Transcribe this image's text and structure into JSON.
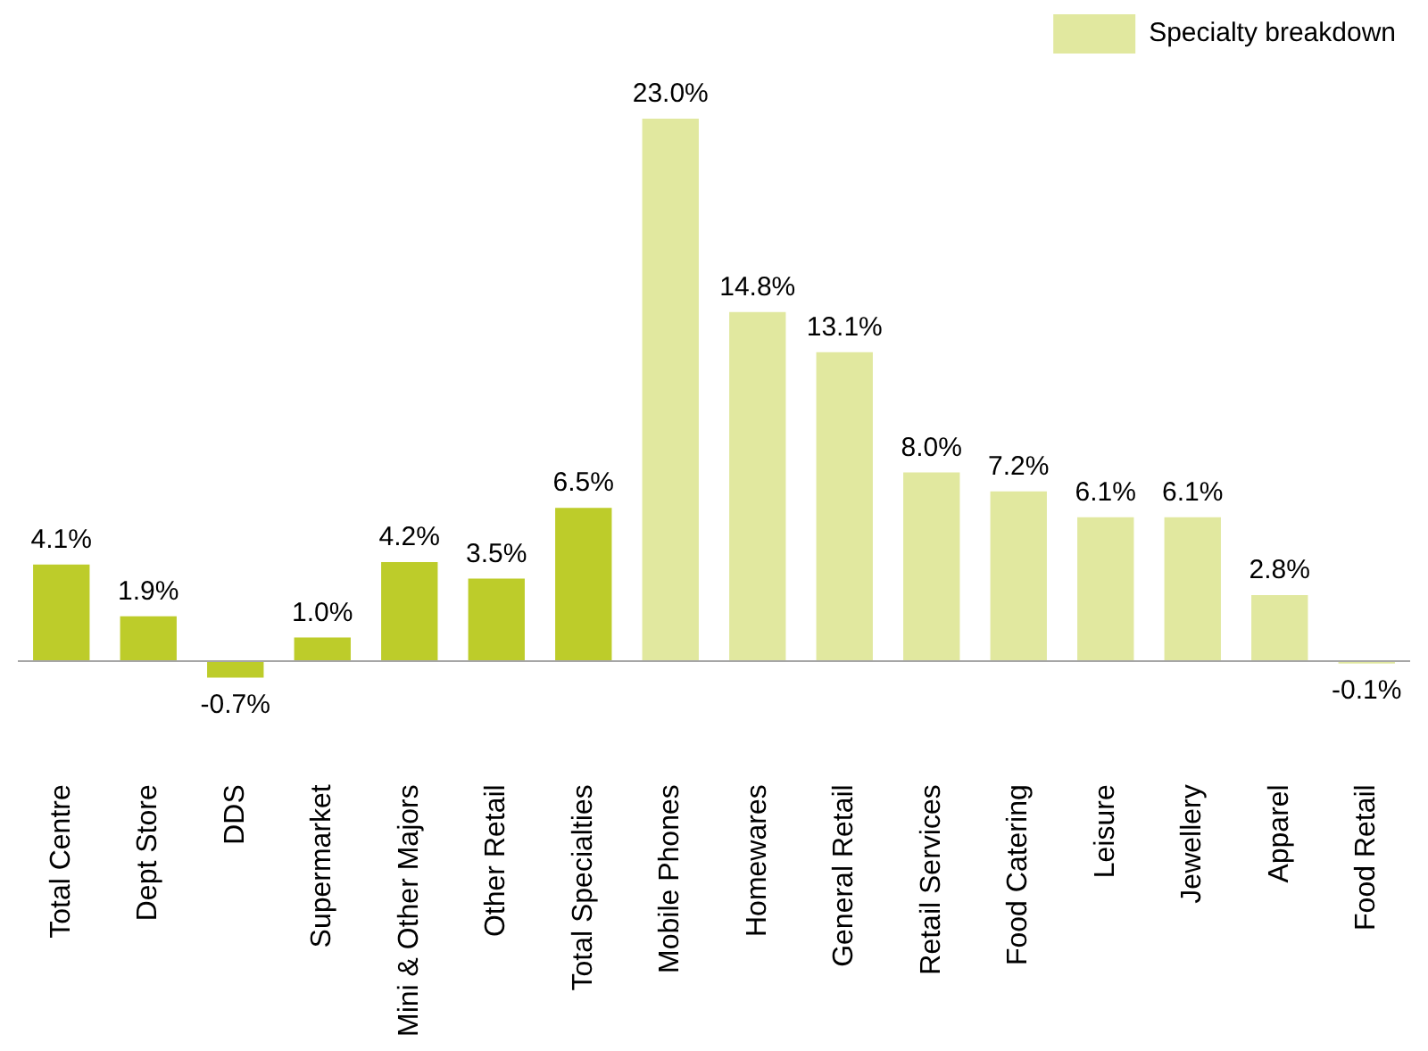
{
  "chart_data": {
    "type": "bar",
    "categories": [
      "Total Centre",
      "Dept Store",
      "DDS",
      "Supermarket",
      "Mini & Other Majors",
      "Other Retail",
      "Total Specialties",
      "Mobile Phones",
      "Homewares",
      "General Retail",
      "Retail Services",
      "Food Catering",
      "Leisure",
      "Jewellery",
      "Apparel",
      "Food Retail"
    ],
    "series": [
      {
        "color": "#bdcc2a",
        "values": [
          4.1,
          1.9,
          -0.7,
          1.0,
          4.2,
          3.5,
          6.5,
          null,
          null,
          null,
          null,
          null,
          null,
          null,
          null,
          null
        ],
        "value_labels": [
          "4.1%",
          "1.9%",
          "-0.7%",
          "1.0%",
          "4.2%",
          "3.5%",
          "6.5%",
          null,
          null,
          null,
          null,
          null,
          null,
          null,
          null,
          null
        ]
      },
      {
        "name": "Specialty breakdown",
        "color": "#e1e89f",
        "values": [
          null,
          null,
          null,
          null,
          null,
          null,
          null,
          23.0,
          14.8,
          13.1,
          8.0,
          7.2,
          6.1,
          6.1,
          2.8,
          -0.1
        ],
        "value_labels": [
          null,
          null,
          null,
          null,
          null,
          null,
          null,
          "23.0%",
          "14.8%",
          "13.1%",
          "8.0%",
          "7.2%",
          "6.1%",
          "6.1%",
          "2.8%",
          "-0.1%"
        ]
      }
    ],
    "legend": "top right",
    "grid": false
  }
}
